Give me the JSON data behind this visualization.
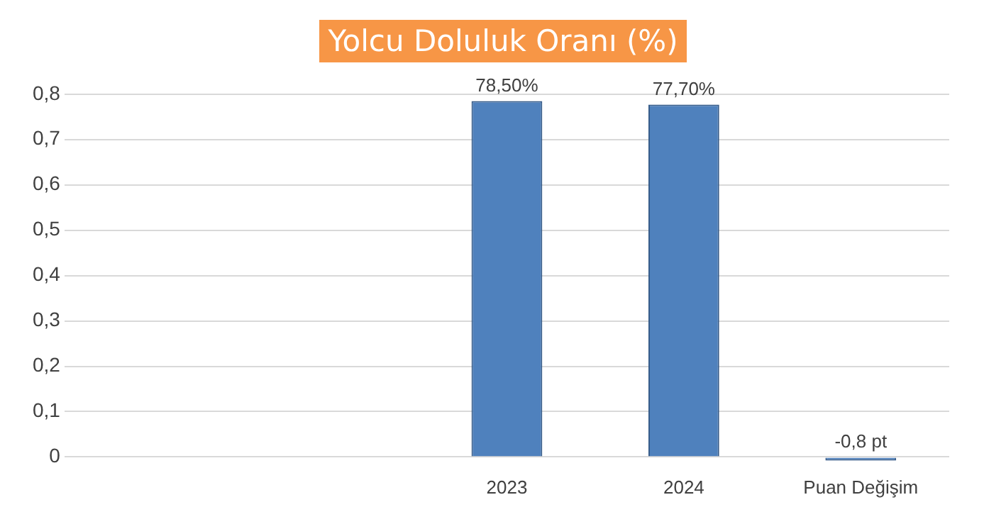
{
  "chart_data": {
    "type": "bar",
    "title": "Yolcu Doluluk Oranı (%)",
    "categories": [
      null,
      null,
      "2023",
      "2024",
      "Puan Değişim"
    ],
    "values": [
      null,
      null,
      0.785,
      0.777,
      -0.008
    ],
    "value_labels": [
      null,
      null,
      "78,50%",
      "77,70%",
      null
    ],
    "annotations": [
      {
        "text": "-0,8 pt",
        "x": "Puan Değişim",
        "y": -0.008
      }
    ],
    "color": "#4f81bd",
    "ylim": [
      -0.01,
      0.8
    ],
    "yticks": [
      {
        "value": 0,
        "label": "0"
      },
      {
        "value": 0.1,
        "label": "0,1"
      },
      {
        "value": 0.2,
        "label": "0,2"
      },
      {
        "value": 0.3,
        "label": "0,3"
      },
      {
        "value": 0.4,
        "label": "0,4"
      },
      {
        "value": 0.5,
        "label": "0,5"
      },
      {
        "value": 0.6,
        "label": "0,6"
      },
      {
        "value": 0.7,
        "label": "0,7"
      },
      {
        "value": 0.8,
        "label": "0,8"
      }
    ],
    "grid": "y",
    "legend": false
  }
}
